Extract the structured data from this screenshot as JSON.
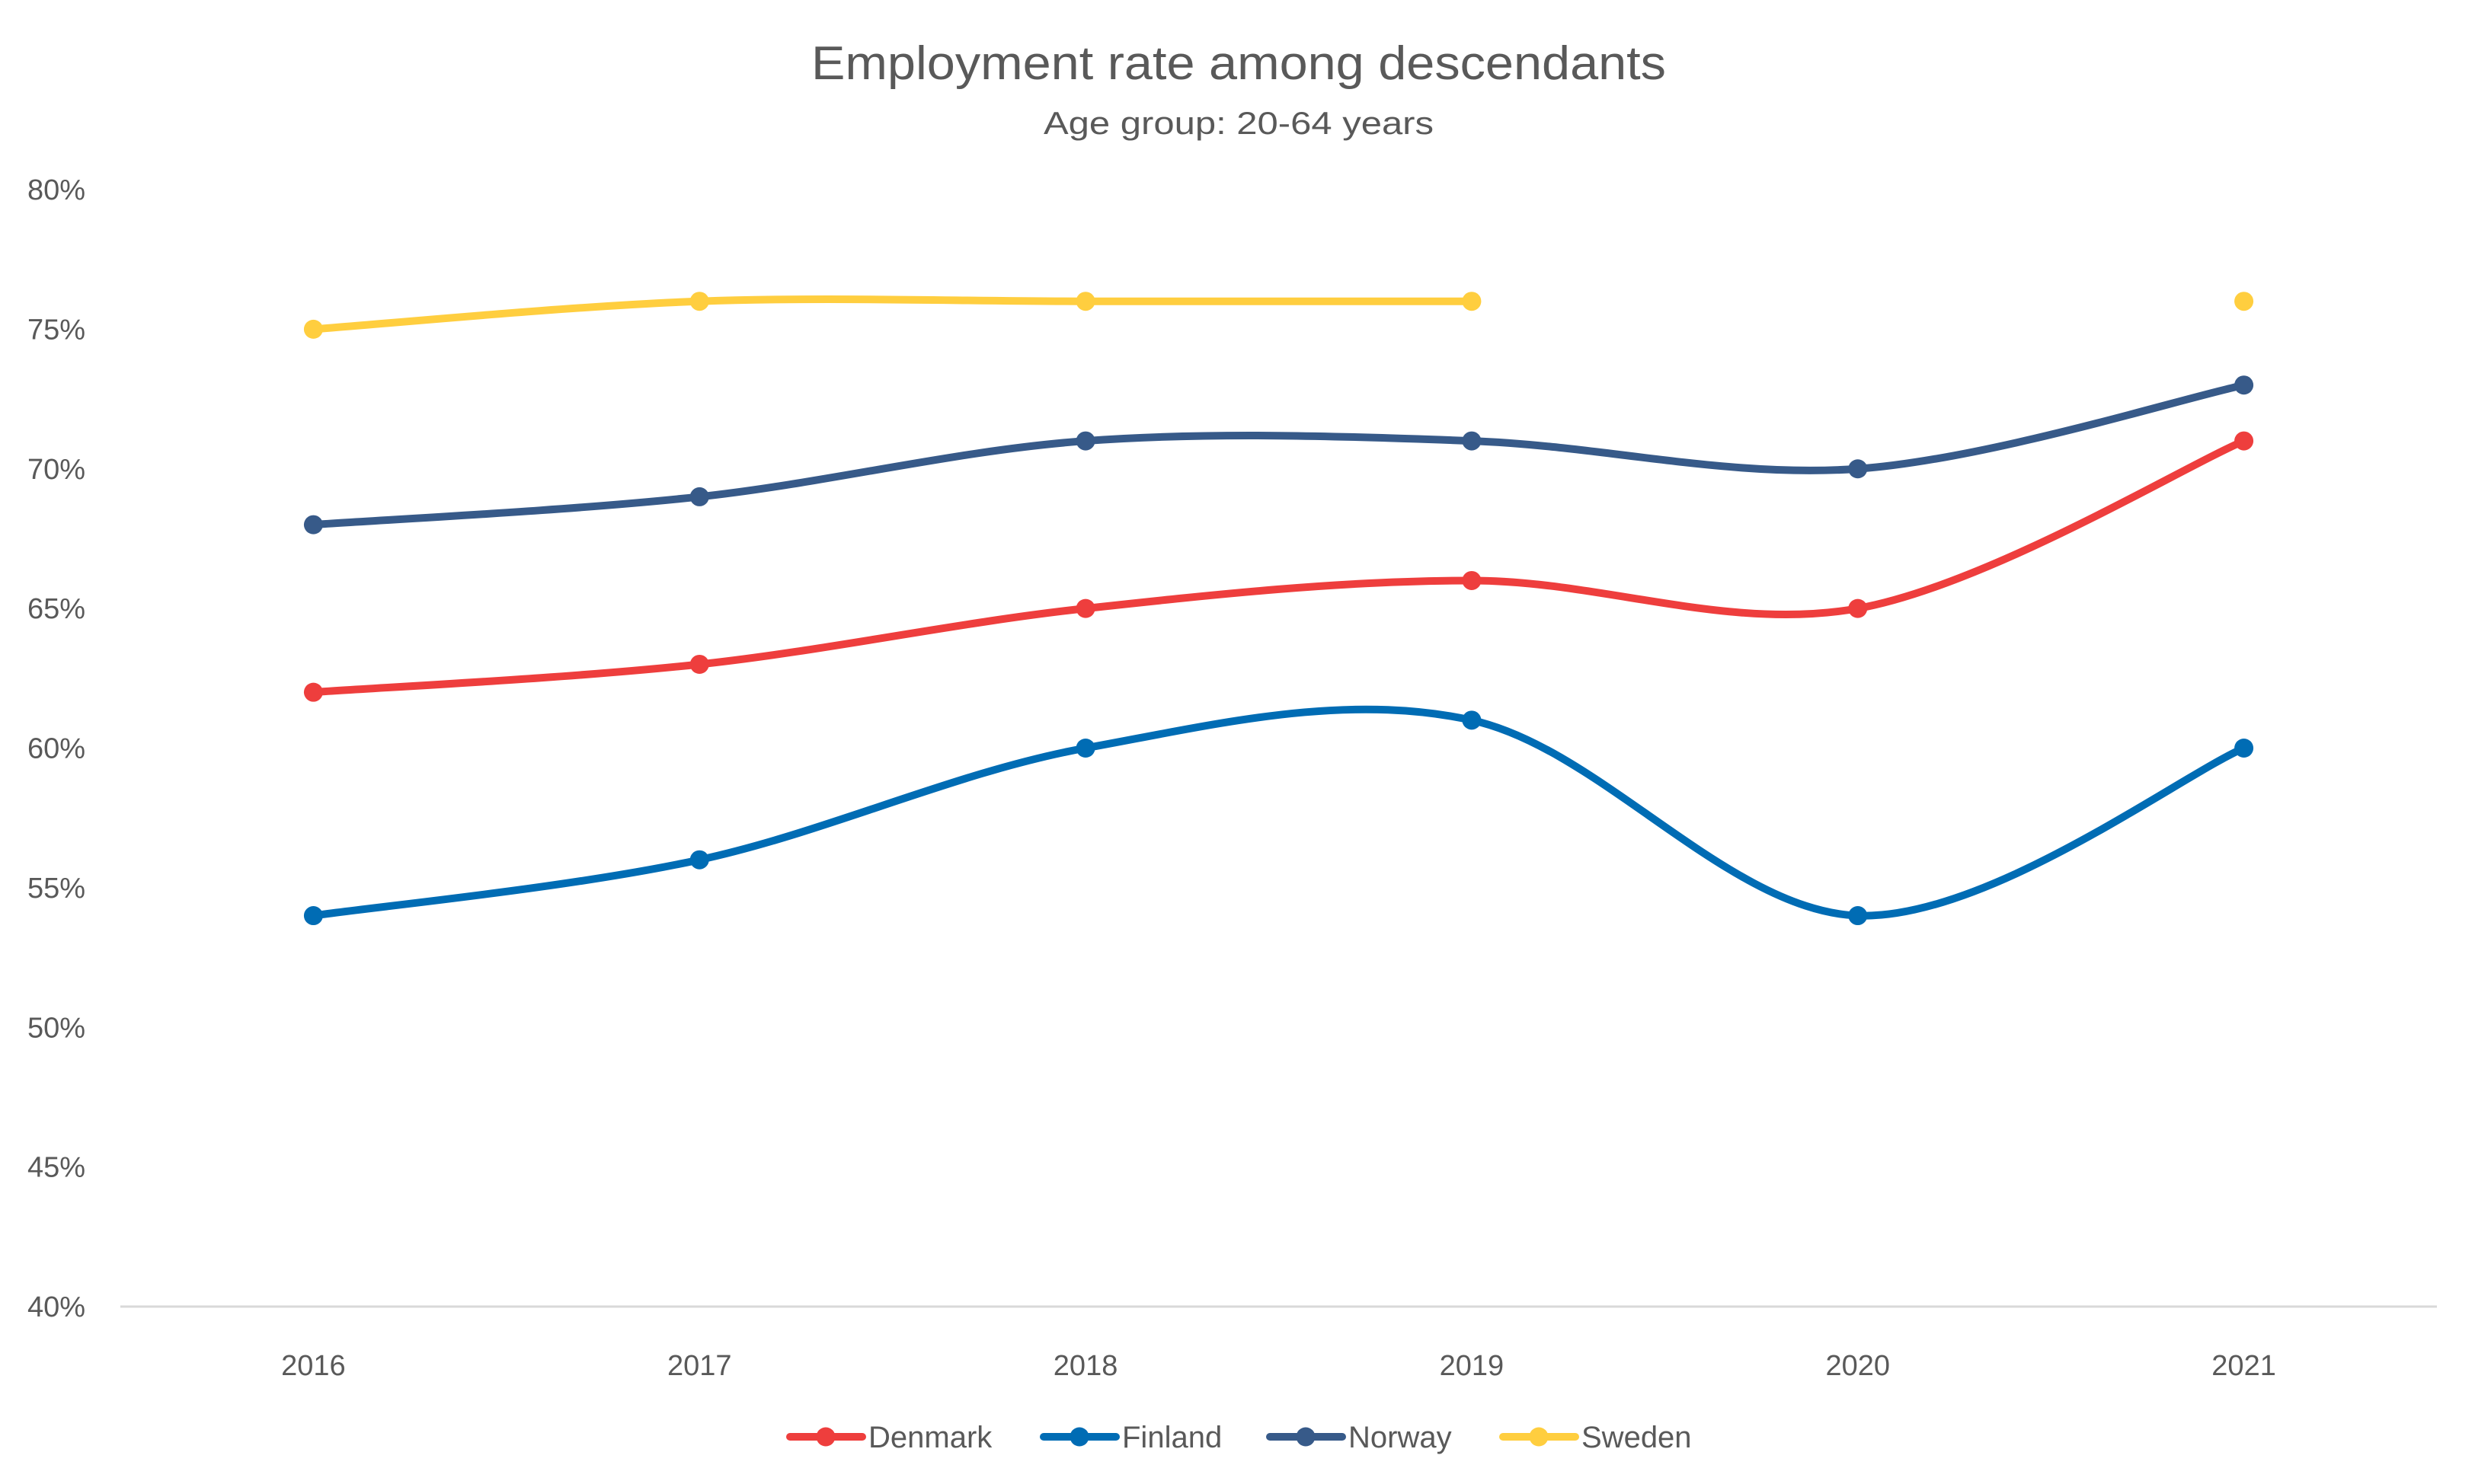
{
  "chart_data": {
    "type": "line",
    "title": "Employment rate among descendants",
    "subtitle": "Age group: 20-64 years",
    "xlabel": "",
    "ylabel": "",
    "categories": [
      "2016",
      "2017",
      "2018",
      "2019",
      "2020",
      "2021"
    ],
    "ylim": [
      40,
      80
    ],
    "y_step": 5,
    "y_tick_labels": [
      "40%",
      "45%",
      "50%",
      "55%",
      "60%",
      "65%",
      "70%",
      "75%",
      "80%"
    ],
    "y_unit": "%",
    "grid": false,
    "smooth": true,
    "legend_position": "bottom",
    "series": [
      {
        "name": "Denmark",
        "color": "#EE3E3D",
        "values": [
          62,
          63,
          65,
          66,
          65,
          71
        ]
      },
      {
        "name": "Finland",
        "color": "#006CB4",
        "values": [
          54,
          56,
          60,
          61,
          54,
          60
        ]
      },
      {
        "name": "Norway",
        "color": "#375A89",
        "values": [
          68,
          69,
          71,
          71,
          70,
          73
        ]
      },
      {
        "name": "Sweden",
        "color": "#FFCE3F",
        "values": [
          75,
          76,
          76,
          76,
          null,
          76
        ]
      }
    ]
  },
  "colors": {
    "text": "#595959",
    "axis": "#D9D9D9"
  }
}
